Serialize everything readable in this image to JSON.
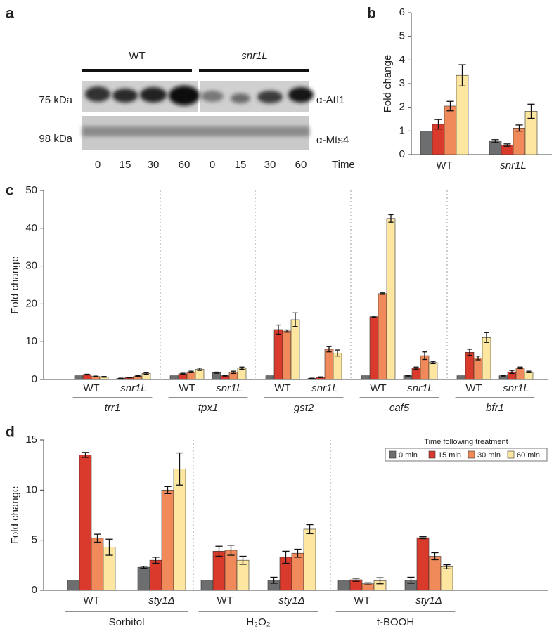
{
  "blot": {
    "panel_label": "a",
    "groups": [
      "WT",
      "snr1L"
    ],
    "bands": [
      {
        "size": "75 kDa",
        "antibody": "α-Atf1"
      },
      {
        "size": "98 kDa",
        "antibody": "α-Mts4"
      }
    ],
    "lanes": [
      "0",
      "15",
      "30",
      "60",
      "0",
      "15",
      "30",
      "60"
    ],
    "lanes_title": "Time"
  },
  "chart_data": [
    {
      "type": "bar",
      "panel_label": "b",
      "ylabel": "Fold change",
      "categories": [
        "WT",
        "snr1L"
      ],
      "series": [
        {
          "color": "#6d6e70",
          "values": [
            1,
            0.57
          ],
          "errors": [
            null,
            0.06
          ]
        },
        {
          "color": "#d93a2b",
          "values": [
            1.28,
            0.4
          ],
          "errors": [
            0.2,
            0.05
          ]
        },
        {
          "color": "#f08a5a",
          "values": [
            2.05,
            1.12
          ],
          "errors": [
            0.2,
            0.13
          ]
        },
        {
          "color": "#fde7a0",
          "values": [
            3.35,
            1.83
          ],
          "errors": [
            0.45,
            0.3
          ]
        }
      ],
      "ylim": [
        0,
        6
      ],
      "yticks": [
        0,
        1,
        2,
        3,
        4,
        5,
        6
      ]
    },
    {
      "type": "bar",
      "panel_label": "c",
      "ylabel": "Fold change",
      "categories": [
        "WT",
        "snr1L",
        "WT",
        "snr1L",
        "WT",
        "snr1L",
        "WT",
        "snr1L",
        "WT",
        "snr1L"
      ],
      "groups": [
        "trr1",
        "tpx1",
        "gst2",
        "caf5",
        "bfr1"
      ],
      "series": [
        {
          "color": "#6d6e70",
          "values": [
            1,
            0.3,
            1,
            1.8,
            1,
            0.3,
            1,
            1,
            1,
            1
          ],
          "errors": [
            null,
            0.05,
            null,
            0.15,
            null,
            0.05,
            null,
            0.1,
            null,
            0.1
          ]
        },
        {
          "color": "#d93a2b",
          "values": [
            1.3,
            0.5,
            1.5,
            1,
            13.2,
            0.6,
            16.6,
            3,
            7.2,
            2
          ],
          "errors": [
            0.1,
            0.05,
            0.15,
            0.1,
            1.2,
            0.1,
            0.2,
            0.3,
            0.8,
            0.4
          ]
        },
        {
          "color": "#f08a5a",
          "values": [
            0.8,
            0.9,
            2,
            1.9,
            12.8,
            8,
            22.7,
            6.3,
            5.7,
            3.1
          ],
          "errors": [
            0.1,
            0.1,
            0.2,
            0.3,
            0.3,
            0.7,
            0.2,
            1,
            0.5,
            0.2
          ]
        },
        {
          "color": "#fde7a0",
          "values": [
            0.7,
            1.6,
            2.7,
            3,
            15.8,
            7,
            42.6,
            4.5,
            11.1,
            2
          ],
          "errors": [
            0.1,
            0.2,
            0.3,
            0.3,
            1.8,
            0.8,
            1,
            0.3,
            1.3,
            0.2
          ]
        }
      ],
      "ylim": [
        0,
        50
      ],
      "yticks": [
        0,
        10,
        20,
        30,
        40,
        50
      ]
    },
    {
      "type": "bar",
      "panel_label": "d",
      "ylabel": "Fold change",
      "categories": [
        "WT",
        "sty1Δ",
        "WT",
        "sty1Δ",
        "WT",
        "sty1Δ"
      ],
      "groups": [
        "Sorbitol",
        "H₂O₂",
        "t-BOOH"
      ],
      "legend_title": "Time following treatment",
      "series": [
        {
          "name": "0 min",
          "color": "#6d6e70",
          "values": [
            1,
            2.3,
            1,
            1,
            1,
            1
          ],
          "errors": [
            null,
            0.1,
            null,
            0.3,
            null,
            0.3
          ]
        },
        {
          "name": "15 min",
          "color": "#d93a2b",
          "values": [
            13.5,
            3,
            3.9,
            3.3,
            1.05,
            5.25
          ],
          "errors": [
            0.25,
            0.3,
            0.5,
            0.6,
            0.15,
            0.1
          ]
        },
        {
          "name": "30 min",
          "color": "#f08a5a",
          "values": [
            5.2,
            10,
            4,
            3.7,
            0.65,
            3.4
          ],
          "errors": [
            0.4,
            0.35,
            0.5,
            0.4,
            0.1,
            0.35
          ]
        },
        {
          "name": "60 min",
          "color": "#fde7a0",
          "values": [
            4.3,
            12.1,
            3,
            6.1,
            0.95,
            2.35
          ],
          "errors": [
            0.8,
            1.6,
            0.4,
            0.45,
            0.3,
            0.2
          ]
        }
      ],
      "ylim": [
        0,
        15
      ],
      "yticks": [
        0,
        5,
        10,
        15
      ]
    }
  ]
}
